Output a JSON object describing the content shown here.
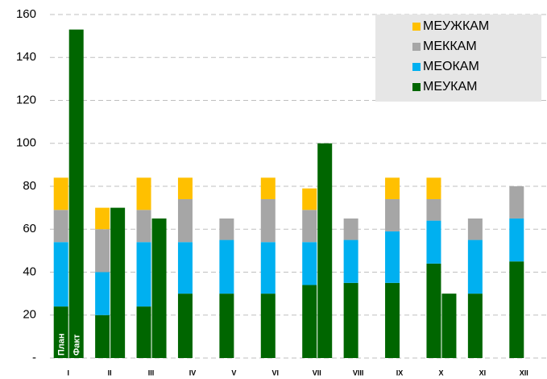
{
  "chart_data": {
    "type": "stacked-bar",
    "categories": [
      "I",
      "II",
      "III",
      "IV",
      "V",
      "VI",
      "VII",
      "VIII",
      "IX",
      "X",
      "XI",
      "XII"
    ],
    "series": [
      {
        "name": "МЕУКАМ",
        "color": "#006600",
        "values": [
          24,
          20,
          24,
          30,
          30,
          30,
          34,
          35,
          35,
          44,
          30,
          45
        ]
      },
      {
        "name": "МЕОКАМ",
        "color": "#00b0f0",
        "values": [
          30,
          20,
          30,
          24,
          25,
          24,
          20,
          20,
          24,
          20,
          25,
          20
        ]
      },
      {
        "name": "МЕККАМ",
        "color": "#a6a6a6",
        "values": [
          15,
          20,
          15,
          20,
          10,
          20,
          15,
          10,
          15,
          10,
          10,
          15
        ]
      },
      {
        "name": "МЕУЖКАМ",
        "color": "#ffc000",
        "values": [
          15,
          10,
          15,
          10,
          0,
          10,
          10,
          0,
          10,
          10,
          0,
          0
        ]
      }
    ],
    "fact": {
      "color": "#006600",
      "values": [
        153,
        70,
        65,
        0,
        0,
        0,
        100,
        0,
        0,
        30,
        0,
        0
      ]
    },
    "bar_labels": [
      "План",
      "Факт"
    ],
    "ylim": [
      0,
      160
    ],
    "yticks": [
      {
        "value": 0,
        "label": "-"
      },
      20,
      40,
      60,
      80,
      100,
      120,
      140,
      160
    ],
    "grid": true,
    "legend": "upper right"
  }
}
